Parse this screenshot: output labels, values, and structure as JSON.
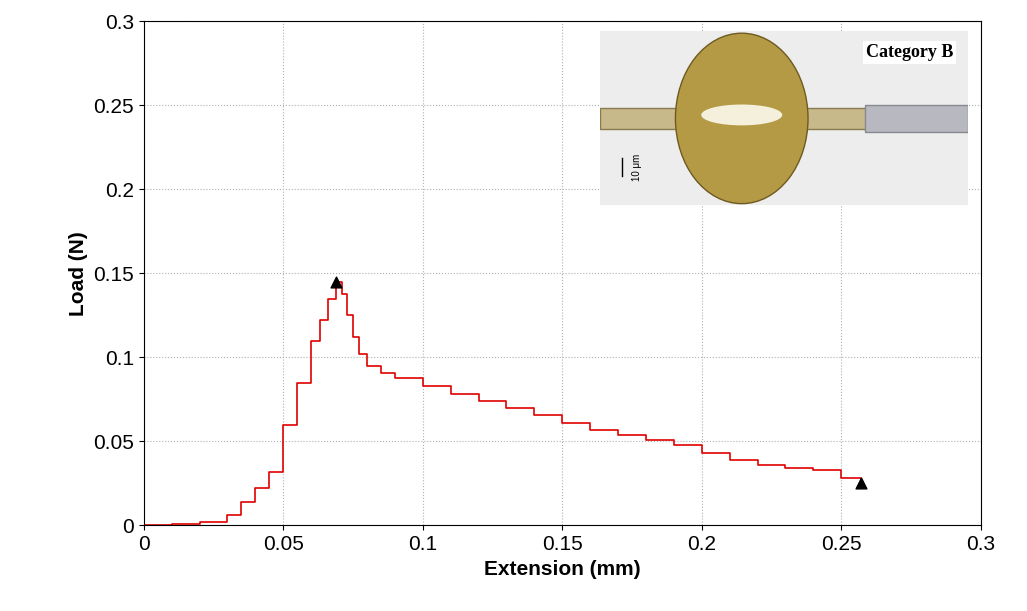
{
  "chart_data": {
    "type": "line",
    "x_label": "Extension (mm)",
    "y_label": "Load (N)",
    "series": [
      {
        "type": "line",
        "color": "#e00000",
        "line_style": "solid",
        "x": [
          0,
          0.01,
          0.02,
          0.03,
          0.035,
          0.04,
          0.045,
          0.05,
          0.055,
          0.06,
          0.063,
          0.066,
          0.069,
          0.071,
          0.073,
          0.075,
          0.077,
          0.08,
          0.085,
          0.09,
          0.1,
          0.11,
          0.12,
          0.13,
          0.14,
          0.15,
          0.16,
          0.17,
          0.18,
          0.19,
          0.2,
          0.21,
          0.22,
          0.23,
          0.24,
          0.25,
          0.257
        ],
        "values": [
          0,
          0.001,
          0.002,
          0.006,
          0.014,
          0.022,
          0.032,
          0.06,
          0.085,
          0.11,
          0.122,
          0.135,
          0.145,
          0.138,
          0.125,
          0.112,
          0.102,
          0.095,
          0.091,
          0.088,
          0.083,
          0.078,
          0.074,
          0.07,
          0.066,
          0.061,
          0.057,
          0.054,
          0.051,
          0.048,
          0.043,
          0.039,
          0.036,
          0.034,
          0.033,
          0.028,
          0.025
        ]
      },
      {
        "type": "scatter",
        "color": "#000000",
        "marker": "^",
        "x": [
          0.069,
          0.257
        ],
        "values": [
          0.145,
          0.025
        ]
      }
    ],
    "xlim": [
      0,
      0.3
    ],
    "xticks": [
      0,
      0.05,
      0.1,
      0.15,
      0.2,
      0.25,
      0.3
    ],
    "ylim": [
      0,
      0.3
    ],
    "yticks": [
      0,
      0.05,
      0.1,
      0.15,
      0.2,
      0.25,
      0.3
    ],
    "grid": true,
    "annotations": [
      "Category B",
      "10 μm"
    ]
  }
}
